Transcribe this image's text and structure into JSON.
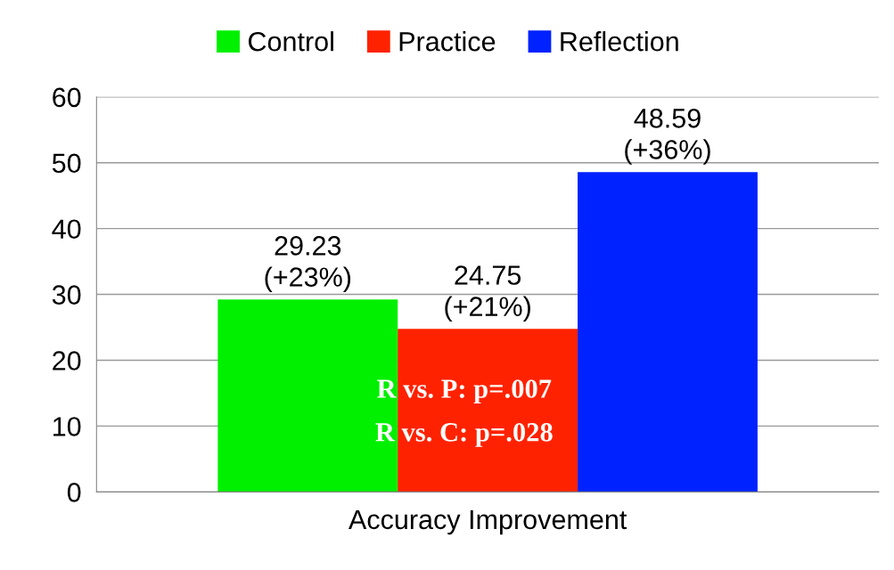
{
  "chart_data": {
    "type": "bar",
    "categories": [
      "Accuracy Improvement"
    ],
    "series": [
      {
        "name": "Control",
        "color": "#00f000",
        "values": [
          29.23
        ],
        "value_labels": [
          "29.23\n(+23%)"
        ]
      },
      {
        "name": "Practice",
        "color": "#ff2200",
        "values": [
          24.75
        ],
        "value_labels": [
          "24.75\n(+21%)"
        ]
      },
      {
        "name": "Reflection",
        "color": "#0022ff",
        "values": [
          48.59
        ],
        "value_labels": [
          "48.59\n(+36%)"
        ]
      }
    ],
    "ylim": [
      0,
      60
    ],
    "yticks": [
      0,
      10,
      20,
      30,
      40,
      50,
      60
    ],
    "grid": "y",
    "legend": "top",
    "annotations": [
      "R vs. P: p=.007",
      "R vs. C: p=.028"
    ]
  }
}
